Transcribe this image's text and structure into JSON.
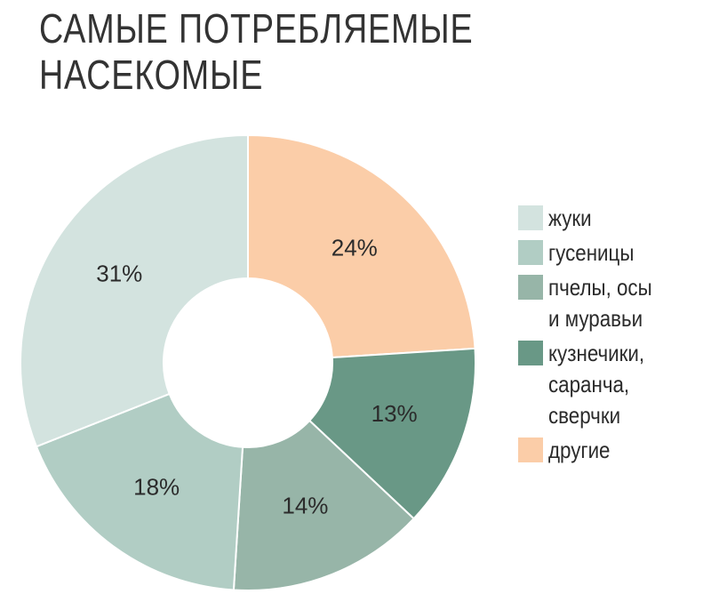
{
  "title": {
    "line1": "САМЫЕ ПОТРЕБЛЯЕМЫЕ",
    "line2": "НАСЕКОМЫЕ"
  },
  "chart_data": {
    "type": "pie",
    "title": "САМЫЕ ПОТРЕБЛЯЕМЫЕ НАСЕКОМЫЕ",
    "donut": true,
    "legend_position": "right",
    "slices": [
      {
        "name": "другие",
        "value": 24,
        "label": "24%",
        "color": "#fbcda8"
      },
      {
        "name": "кузнечики,\nсаранча,\nсверчки",
        "value": 13,
        "label": "13%",
        "color": "#699886"
      },
      {
        "name": "пчелы, осы\nи муравьи",
        "value": 14,
        "label": "14%",
        "color": "#97b5a8"
      },
      {
        "name": "гусеницы",
        "value": 18,
        "label": "18%",
        "color": "#b1cdc4"
      },
      {
        "name": "жуки",
        "value": 31,
        "label": "31%",
        "color": "#d3e3df"
      }
    ]
  },
  "legend": [
    {
      "label": "жуки",
      "color": "#d3e3df"
    },
    {
      "label": "гусеницы",
      "color": "#b1cdc4"
    },
    {
      "label": "пчелы, осы\n и муравьи",
      "color": "#97b5a8"
    },
    {
      "label": "кузнечики,\nсаранча,\nсверчки",
      "color": "#699886"
    },
    {
      "label": "другие",
      "color": "#fbcda8"
    }
  ]
}
